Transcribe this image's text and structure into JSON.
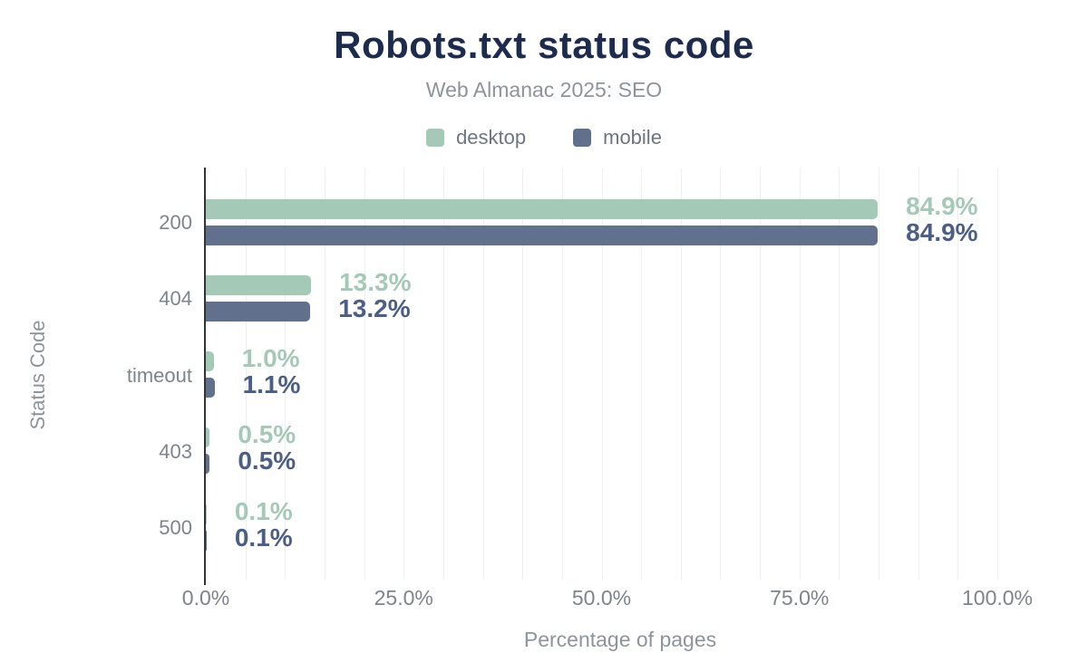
{
  "chart_data": {
    "type": "bar",
    "orientation": "horizontal",
    "title": "Robots.txt status code",
    "subtitle": "Web Almanac 2025: SEO",
    "categories": [
      "200",
      "404",
      "timeout",
      "403",
      "500"
    ],
    "series": [
      {
        "name": "desktop",
        "values": [
          84.9,
          13.3,
          1.0,
          0.5,
          0.1
        ],
        "value_labels": [
          "84.9%",
          "13.3%",
          "1.0%",
          "0.5%",
          "0.1%"
        ],
        "color": "#a5c9b7",
        "label_color": "#a5c9b7"
      },
      {
        "name": "mobile",
        "values": [
          84.9,
          13.2,
          1.1,
          0.5,
          0.1
        ],
        "value_labels": [
          "84.9%",
          "13.2%",
          "1.1%",
          "0.5%",
          "0.1%"
        ],
        "color": "#61708c",
        "label_color": "#4b5e86"
      }
    ],
    "xlabel": "Percentage of pages",
    "ylabel": "Status Code",
    "x_ticks": [
      {
        "value": 0,
        "label": "0.0%"
      },
      {
        "value": 25,
        "label": "25.0%"
      },
      {
        "value": 50,
        "label": "50.0%"
      },
      {
        "value": 75,
        "label": "75.0%"
      },
      {
        "value": 100,
        "label": "100.0%"
      }
    ],
    "xlim": [
      0,
      104.7
    ],
    "grid": {
      "minor_step_pct": 5,
      "on": true
    }
  },
  "colors": {
    "title": "#1d2b4f",
    "subtitle": "#8d949b",
    "legend_text": "#6c757e",
    "tick_text": "#7d848c",
    "axis_title_text": "#8d949b",
    "axis_line": "#303439",
    "gridline": "#eef0f1",
    "background": "#ffffff"
  }
}
